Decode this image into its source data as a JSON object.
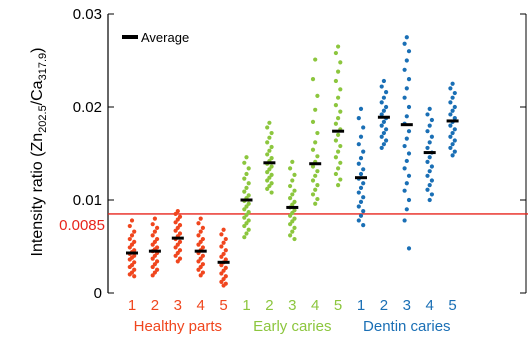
{
  "chart_data": {
    "type": "scatter",
    "ylabel": "Intensity ratio (Zn",
    "ylabel_sub1": "202.5",
    "ylabel_mid": "/Ca",
    "ylabel_sub2": "317.9",
    "ylabel_end": ")",
    "ylim": [
      0,
      0.03
    ],
    "yticks": [
      "0",
      "0.01",
      "0.02",
      "0.03"
    ],
    "legend": {
      "label": "Average",
      "placement": "top-left"
    },
    "threshold": {
      "value": 0.0085,
      "label": "0.0085",
      "color": "#e8241c"
    },
    "groups": [
      {
        "name": "Healthy parts",
        "color": "#f0461e",
        "samples": [
          {
            "label": "1",
            "average": 0.0043,
            "points": [
              0.0078,
              0.0072,
              0.0066,
              0.0062,
              0.0058,
              0.0055,
              0.0052,
              0.0049,
              0.0046,
              0.0044,
              0.0042,
              0.004,
              0.0038,
              0.0036,
              0.0033,
              0.003,
              0.0028,
              0.0025,
              0.0022,
              0.002,
              0.0018
            ]
          },
          {
            "label": "2",
            "average": 0.0045,
            "points": [
              0.008,
              0.0074,
              0.007,
              0.0066,
              0.0062,
              0.0058,
              0.0055,
              0.0052,
              0.0049,
              0.0047,
              0.0045,
              0.0043,
              0.004,
              0.0037,
              0.0034,
              0.0031,
              0.0028,
              0.0025,
              0.0022,
              0.0019
            ]
          },
          {
            "label": "3",
            "average": 0.0059,
            "points": [
              0.0088,
              0.0085,
              0.0082,
              0.0079,
              0.0076,
              0.0073,
              0.007,
              0.0067,
              0.0064,
              0.0061,
              0.0058,
              0.0055,
              0.0052,
              0.0049,
              0.0046,
              0.0043,
              0.004,
              0.0037,
              0.0034
            ]
          },
          {
            "label": "4",
            "average": 0.0045,
            "points": [
              0.008,
              0.0075,
              0.007,
              0.0066,
              0.0062,
              0.0058,
              0.0055,
              0.0052,
              0.0049,
              0.0046,
              0.0043,
              0.004,
              0.0037,
              0.0034,
              0.0031,
              0.0028,
              0.0025,
              0.0022,
              0.0019
            ]
          },
          {
            "label": "5",
            "average": 0.0033,
            "points": [
              0.0068,
              0.0063,
              0.0058,
              0.0054,
              0.005,
              0.0046,
              0.0042,
              0.0039,
              0.0036,
              0.0033,
              0.003,
              0.0027,
              0.0024,
              0.0021,
              0.0018,
              0.0015,
              0.0012,
              0.001,
              0.0008
            ]
          }
        ]
      },
      {
        "name": "Early caries",
        "color": "#8cc63e",
        "samples": [
          {
            "label": "1",
            "average": 0.01,
            "points": [
              0.0146,
              0.014,
              0.0134,
              0.0128,
              0.0123,
              0.0118,
              0.0113,
              0.0109,
              0.0105,
              0.0102,
              0.0099,
              0.0096,
              0.0093,
              0.009,
              0.0087,
              0.0084,
              0.0081,
              0.0078,
              0.0075,
              0.0072,
              0.0068,
              0.0064,
              0.006
            ]
          },
          {
            "label": "2",
            "average": 0.014,
            "points": [
              0.0183,
              0.0178,
              0.0172,
              0.0167,
              0.0162,
              0.0157,
              0.0153,
              0.0149,
              0.0145,
              0.0142,
              0.0139,
              0.0136,
              0.0133,
              0.013,
              0.0127,
              0.0124,
              0.0121,
              0.0118,
              0.0115,
              0.0112,
              0.0108
            ]
          },
          {
            "label": "3",
            "average": 0.0092,
            "points": [
              0.0141,
              0.0134,
              0.0127,
              0.0121,
              0.0115,
              0.011,
              0.0106,
              0.0102,
              0.0098,
              0.0095,
              0.0092,
              0.0089,
              0.0086,
              0.0083,
              0.008,
              0.0077,
              0.0074,
              0.007,
              0.0066,
              0.0062,
              0.0058
            ]
          },
          {
            "label": "4",
            "average": 0.0139,
            "points": [
              0.0251,
              0.023,
              0.0212,
              0.0197,
              0.0184,
              0.0172,
              0.0162,
              0.0154,
              0.0147,
              0.0141,
              0.0136,
              0.0131,
              0.0126,
              0.0121,
              0.0116,
              0.0111,
              0.0106,
              0.0101,
              0.0096
            ]
          },
          {
            "label": "5",
            "average": 0.0174,
            "points": [
              0.0265,
              0.0258,
              0.0248,
              0.0238,
              0.0228,
              0.0219,
              0.021,
              0.0202,
              0.0195,
              0.0188,
              0.0182,
              0.0176,
              0.017,
              0.0164,
              0.0158,
              0.0152,
              0.0146,
              0.014,
              0.0134,
              0.0128,
              0.0122,
              0.0116
            ]
          }
        ]
      },
      {
        "name": "Dentin caries",
        "color": "#1a6fb5",
        "samples": [
          {
            "label": "1",
            "average": 0.0124,
            "points": [
              0.0198,
              0.0188,
              0.0178,
              0.0168,
              0.016,
              0.0152,
              0.0145,
              0.0139,
              0.0133,
              0.0128,
              0.0123,
              0.0118,
              0.0113,
              0.0108,
              0.0103,
              0.0098,
              0.0093,
              0.0088,
              0.0083,
              0.0078,
              0.0073
            ]
          },
          {
            "label": "2",
            "average": 0.0189,
            "points": [
              0.0228,
              0.0222,
              0.0216,
              0.021,
              0.0205,
              0.02,
              0.0196,
              0.0192,
              0.0188,
              0.0184,
              0.018,
              0.0176,
              0.0172,
              0.0168,
              0.0164,
              0.016,
              0.0156
            ]
          },
          {
            "label": "3",
            "average": 0.0181,
            "points": [
              0.0275,
              0.0268,
              0.026,
              0.025,
              0.024,
              0.023,
              0.022,
              0.021,
              0.02,
              0.019,
              0.0182,
              0.0174,
              0.0166,
              0.0158,
              0.015,
              0.0142,
              0.0134,
              0.0126,
              0.0118,
              0.011,
              0.01,
              0.009,
              0.0078,
              0.0048
            ]
          },
          {
            "label": "4",
            "average": 0.0151,
            "points": [
              0.0198,
              0.0192,
              0.0186,
              0.018,
              0.0174,
              0.0168,
              0.0162,
              0.0156,
              0.0151,
              0.0146,
              0.0141,
              0.0136,
              0.0131,
              0.0126,
              0.0121,
              0.0116,
              0.0111,
              0.0106,
              0.01
            ]
          },
          {
            "label": "5",
            "average": 0.0185,
            "points": [
              0.0225,
              0.022,
              0.0215,
              0.021,
              0.0205,
              0.02,
              0.0196,
              0.0192,
              0.0188,
              0.0184,
              0.018,
              0.0176,
              0.0172,
              0.0168,
              0.0164,
              0.016,
              0.0156,
              0.0152,
              0.0148
            ]
          }
        ]
      }
    ]
  }
}
